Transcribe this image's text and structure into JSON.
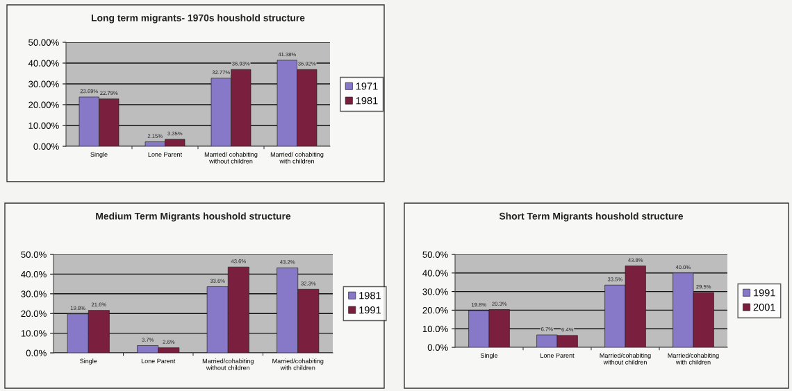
{
  "chart_data": [
    {
      "type": "bar",
      "title": "Long term migrants- 1970s houshold structure",
      "categories": [
        "Single",
        "Lone Parent",
        "Married/ cohabiting\nwithout children",
        "Married/ cohabiting\nwith children"
      ],
      "series": [
        {
          "name": "1971",
          "color": "#8878c8",
          "values": [
            23.69,
            2.15,
            32.77,
            41.38
          ],
          "value_labels": [
            "23.69%",
            "2.15%",
            "32.77%",
            "41.38%"
          ]
        },
        {
          "name": "1981",
          "color": "#7a1f3d",
          "values": [
            22.79,
            3.35,
            36.93,
            36.92
          ],
          "value_labels": [
            "22.79%",
            "3.35%",
            "36.93%",
            "36.92%"
          ]
        }
      ],
      "ylim": [
        0,
        50
      ],
      "yticks": [
        {
          "value": 0,
          "label": "0.00%"
        },
        {
          "value": 10,
          "label": "10.00%"
        },
        {
          "value": 20,
          "label": "20.00%"
        },
        {
          "value": 30,
          "label": "30.00%"
        },
        {
          "value": 40,
          "label": "40.00%"
        },
        {
          "value": 50,
          "label": "50.00%"
        }
      ],
      "grid": "y",
      "legend": "right"
    },
    {
      "type": "bar",
      "title": "Medium Term Migrants houshold structure",
      "categories": [
        "Single",
        "Lone Parent",
        "Married/cohabiting\nwithout children",
        "Married/cohabiting\nwith children"
      ],
      "series": [
        {
          "name": "1981",
          "color": "#8878c8",
          "values": [
            19.8,
            3.7,
            33.6,
            43.2
          ],
          "value_labels": [
            "19.8%",
            "3.7%",
            "33.6%",
            "43.2%"
          ]
        },
        {
          "name": "1991",
          "color": "#7a1f3d",
          "values": [
            21.6,
            2.6,
            43.6,
            32.3
          ],
          "value_labels": [
            "21.6%",
            "2.6%",
            "43.6%",
            "32.3%"
          ]
        }
      ],
      "ylim": [
        0,
        50
      ],
      "yticks": [
        {
          "value": 0,
          "label": "0.0%"
        },
        {
          "value": 10,
          "label": "10.0%"
        },
        {
          "value": 20,
          "label": "20.0%"
        },
        {
          "value": 30,
          "label": "30.0%"
        },
        {
          "value": 40,
          "label": "40.0%"
        },
        {
          "value": 50,
          "label": "50.0%"
        }
      ],
      "grid": "y",
      "legend": "right"
    },
    {
      "type": "bar",
      "title": "Short Term Migrants houshold structure",
      "categories": [
        "Single",
        "Lone Parent",
        "Married/cohabiting\nwithout children",
        "Married/cohabiting\nwith children"
      ],
      "series": [
        {
          "name": "1991",
          "color": "#8878c8",
          "values": [
            19.8,
            6.7,
            33.5,
            40.0
          ],
          "value_labels": [
            "19.8%",
            "6.7%",
            "33.5%",
            "40.0%"
          ]
        },
        {
          "name": "2001",
          "color": "#7a1f3d",
          "values": [
            20.3,
            6.4,
            43.8,
            29.5
          ],
          "value_labels": [
            "20.3%",
            "6.4%",
            "43.8%",
            "29.5%"
          ]
        }
      ],
      "ylim": [
        0,
        50
      ],
      "yticks": [
        {
          "value": 0,
          "label": "0.0%"
        },
        {
          "value": 10,
          "label": "10.0%"
        },
        {
          "value": 20,
          "label": "20.0%"
        },
        {
          "value": 30,
          "label": "30.0%"
        },
        {
          "value": 40,
          "label": "40.0%"
        },
        {
          "value": 50,
          "label": "50.0%"
        }
      ],
      "grid": "y",
      "legend": "right"
    }
  ]
}
